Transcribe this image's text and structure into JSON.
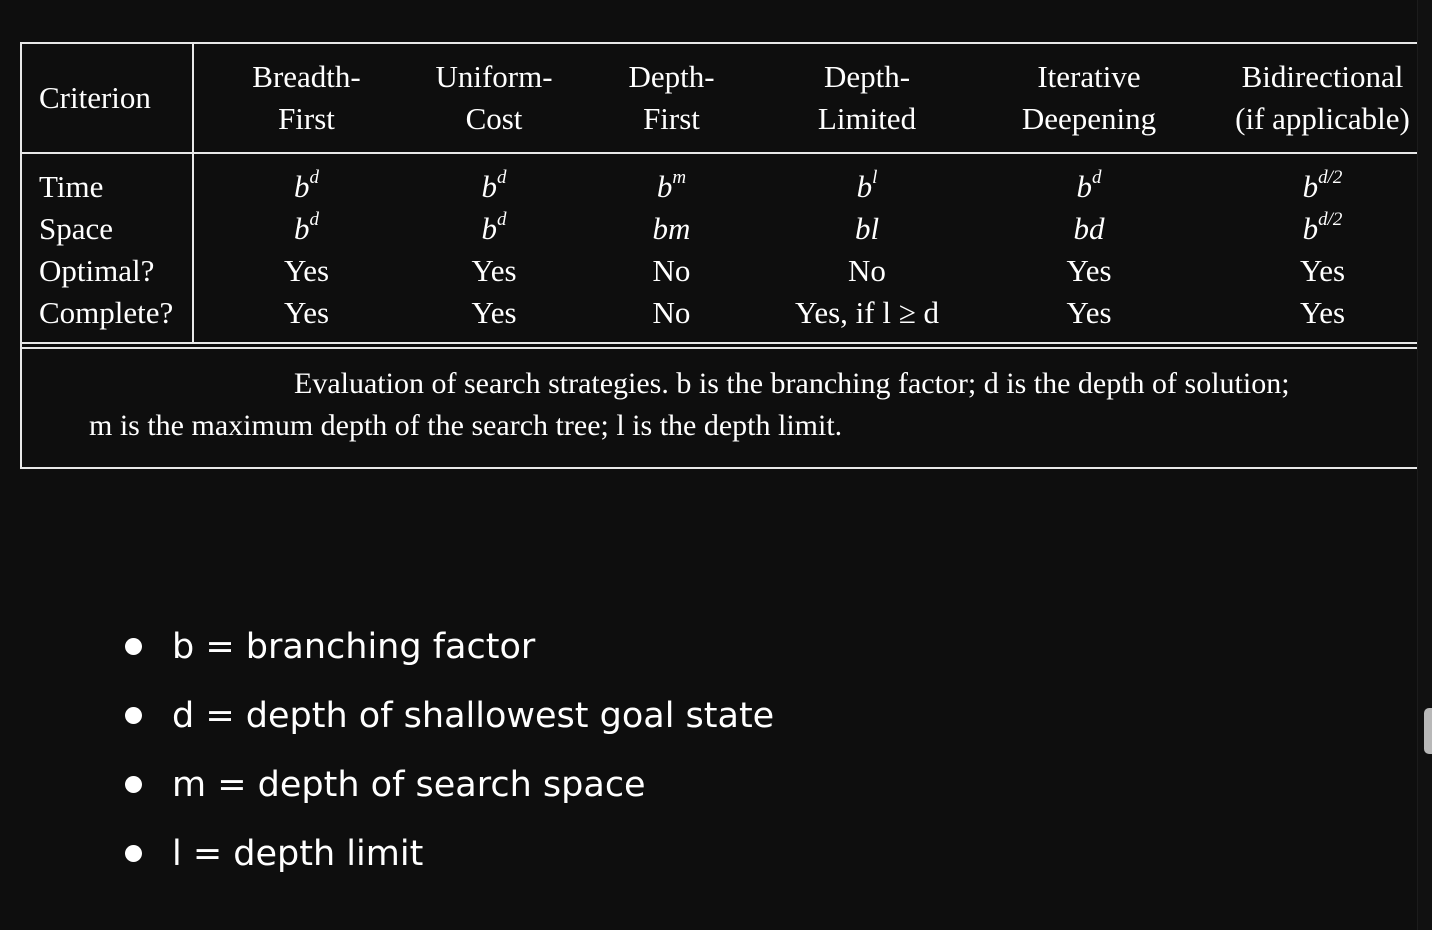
{
  "table": {
    "header": {
      "criterion": "Criterion",
      "columns": [
        {
          "line1": "Breadth-",
          "line2": "First"
        },
        {
          "line1": "Uniform-",
          "line2": "Cost"
        },
        {
          "line1": "Depth-",
          "line2": "First"
        },
        {
          "line1": "Depth-",
          "line2": "Limited"
        },
        {
          "line1": "Iterative",
          "line2": "Deepening"
        },
        {
          "line1": "Bidirectional",
          "line2": "(if applicable)"
        }
      ]
    },
    "rows": [
      {
        "label": "Time",
        "cells": [
          {
            "base": "b",
            "exp": "d"
          },
          {
            "base": "b",
            "exp": "d"
          },
          {
            "base": "b",
            "exp": "m"
          },
          {
            "base": "b",
            "exp": "l"
          },
          {
            "base": "b",
            "exp": "d"
          },
          {
            "base": "b",
            "exp": "d/2"
          }
        ]
      },
      {
        "label": "Space",
        "cells": [
          {
            "base": "b",
            "exp": "d"
          },
          {
            "base": "b",
            "exp": "d"
          },
          {
            "base": "bm",
            "exp": ""
          },
          {
            "base": "bl",
            "exp": ""
          },
          {
            "base": "bd",
            "exp": ""
          },
          {
            "base": "b",
            "exp": "d/2"
          }
        ]
      },
      {
        "label": "Optimal?",
        "cells": [
          "Yes",
          "Yes",
          "No",
          "No",
          "Yes",
          "Yes"
        ]
      },
      {
        "label": "Complete?",
        "cells": [
          "Yes",
          "Yes",
          "No",
          "Yes, if l ≥ d",
          "Yes",
          "Yes"
        ]
      }
    ],
    "caption": {
      "line1": "Evaluation of search strategies. b is the branching factor; d is the depth of solution;",
      "line2": "m is the maximum depth of the search tree; l is the depth limit."
    }
  },
  "bullets": [
    "b = branching factor",
    "d = depth of shallowest goal state",
    "m = depth of search space",
    "l = depth limit"
  ],
  "colors": {
    "background": "#0e0e0e",
    "text": "#ffffff",
    "rules": "#e8e8e8"
  }
}
